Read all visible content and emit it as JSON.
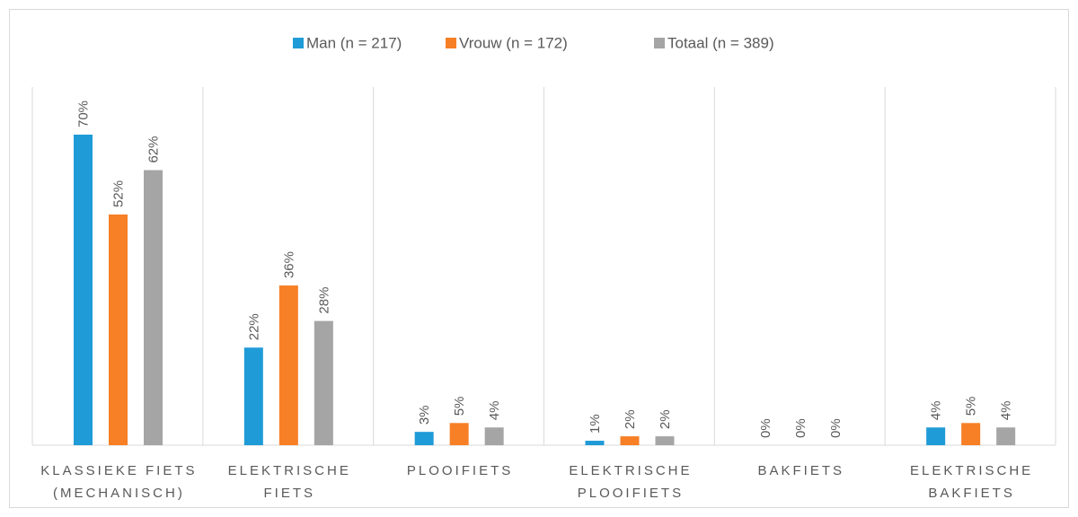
{
  "chart_data": {
    "type": "bar",
    "categories": [
      [
        "KLASSIEKE FIETS",
        "(MECHANISCH)"
      ],
      [
        "ELEKTRISCHE",
        "FIETS"
      ],
      [
        "PLOOIFIETS"
      ],
      [
        "ELEKTRISCHE",
        "PLOOIFIETS"
      ],
      [
        "BAKFIETS"
      ],
      [
        "ELEKTRISCHE",
        "BAKFIETS"
      ]
    ],
    "series": [
      {
        "name": "Man (n = 217)",
        "color": "#1f9bd7",
        "values": [
          70,
          22,
          3,
          1,
          0,
          4
        ],
        "value_labels": [
          "70%",
          "22%",
          "3%",
          "1%",
          "0%",
          "4%"
        ]
      },
      {
        "name": "Vrouw (n = 172)",
        "color": "#f77f26",
        "values": [
          52,
          36,
          5,
          2,
          0,
          5
        ],
        "value_labels": [
          "52%",
          "36%",
          "5%",
          "2%",
          "0%",
          "5%"
        ]
      },
      {
        "name": "Totaal (n = 389)",
        "color": "#a5a5a5",
        "values": [
          62,
          28,
          4,
          2,
          0,
          4
        ],
        "value_labels": [
          "62%",
          "28%",
          "4%",
          "2%",
          "0%",
          "4%"
        ]
      }
    ],
    "legend": "top"
  }
}
